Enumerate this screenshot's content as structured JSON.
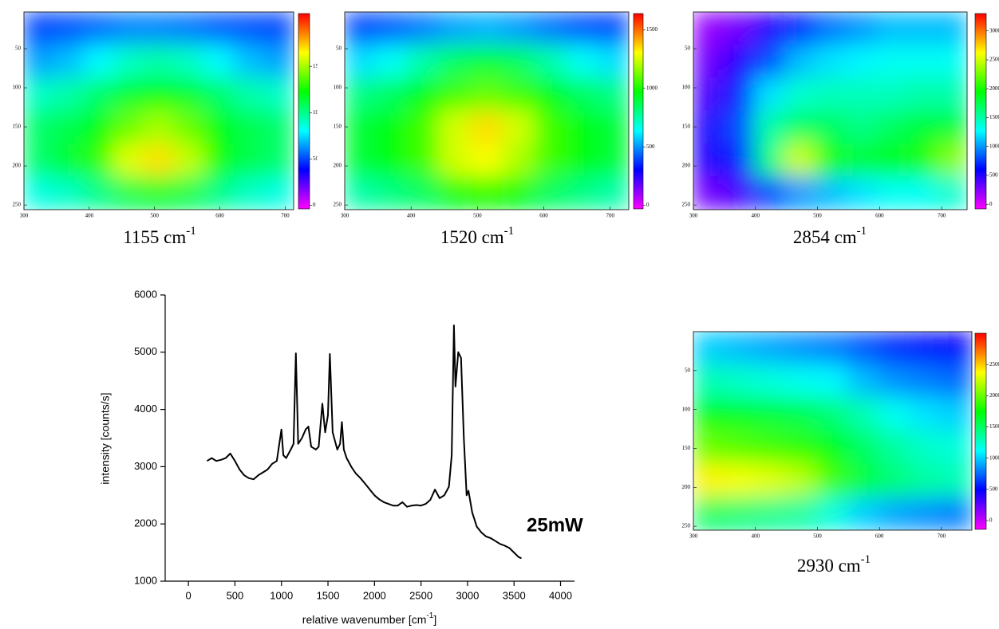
{
  "chart_data": [
    {
      "type": "heatmap",
      "title": [
        "1155 cm",
        "-1"
      ],
      "xlim": [
        300,
        713
      ],
      "ylim": [
        256,
        3
      ],
      "xticks": [
        300,
        400,
        500,
        600,
        700
      ],
      "yticks": [
        50,
        100,
        150,
        200,
        250
      ],
      "clim": [
        -40,
        2070
      ],
      "cticks": [
        0,
        500,
        1000,
        1500
      ],
      "colors": [
        "#ff00ff",
        "#0000ff",
        "#00ffff",
        "#00ff00",
        "#ffff00",
        "#ff0000"
      ],
      "z": [
        [
          500,
          520,
          560,
          600,
          600,
          580,
          540,
          520,
          500
        ],
        [
          650,
          700,
          800,
          900,
          950,
          900,
          800,
          700,
          650
        ],
        [
          900,
          950,
          1050,
          1150,
          1200,
          1150,
          1050,
          950,
          900
        ],
        [
          1050,
          1100,
          1200,
          1400,
          1500,
          1400,
          1200,
          1100,
          1050
        ],
        [
          1050,
          1150,
          1300,
          1600,
          1700,
          1550,
          1250,
          1100,
          1050
        ],
        [
          850,
          900,
          1000,
          1100,
          1150,
          1100,
          1000,
          900,
          850
        ]
      ]
    },
    {
      "type": "heatmap",
      "title": [
        "1520 cm",
        "-1"
      ],
      "xlim": [
        300,
        728
      ],
      "ylim": [
        256,
        3
      ],
      "xticks": [
        300,
        400,
        500,
        600,
        700
      ],
      "yticks": [
        50,
        100,
        150,
        200,
        250
      ],
      "clim": [
        -30,
        1640
      ],
      "cticks": [
        0,
        500,
        1000,
        1500
      ],
      "colors": [
        "#ff00ff",
        "#0000ff",
        "#00ffff",
        "#00ff00",
        "#ffff00",
        "#ff0000"
      ],
      "z": [
        [
          400,
          430,
          470,
          520,
          540,
          510,
          460,
          420,
          400
        ],
        [
          600,
          650,
          750,
          850,
          900,
          850,
          750,
          650,
          600
        ],
        [
          800,
          850,
          950,
          1050,
          1100,
          1050,
          950,
          850,
          800
        ],
        [
          900,
          950,
          1050,
          1250,
          1350,
          1250,
          1050,
          950,
          900
        ],
        [
          900,
          950,
          1050,
          1250,
          1300,
          1200,
          1050,
          950,
          900
        ],
        [
          750,
          800,
          850,
          950,
          1000,
          950,
          850,
          800,
          750
        ]
      ]
    },
    {
      "type": "heatmap",
      "title": [
        "2854 cm",
        "-1"
      ],
      "xlim": [
        300,
        741
      ],
      "ylim": [
        256,
        3
      ],
      "xticks": [
        300,
        400,
        500,
        600,
        700
      ],
      "yticks": [
        50,
        100,
        150,
        200,
        250
      ],
      "clim": [
        -80,
        3300
      ],
      "cticks": [
        0,
        500,
        1000,
        1500,
        2000,
        2500,
        3000
      ],
      "colors": [
        "#ff00ff",
        "#0000ff",
        "#00ffff",
        "#00ff00",
        "#ffff00",
        "#ff0000"
      ],
      "z": [
        [
          200,
          300,
          500,
          700,
          900,
          1000,
          1100,
          1100,
          1100
        ],
        [
          300,
          500,
          800,
          1100,
          1200,
          1250,
          1300,
          1300,
          1300
        ],
        [
          400,
          700,
          1200,
          1400,
          1450,
          1450,
          1450,
          1500,
          1500
        ],
        [
          500,
          800,
          1500,
          1700,
          1700,
          1600,
          1700,
          1800,
          1800
        ],
        [
          500,
          700,
          1600,
          2500,
          2000,
          1800,
          1900,
          2000,
          2300
        ],
        [
          300,
          400,
          800,
          1000,
          1100,
          1200,
          1300,
          1300,
          1400
        ]
      ]
    },
    {
      "type": "line",
      "xlabel": [
        "relative wavenumber [cm",
        "-1",
        "]"
      ],
      "ylabel": "intensity [counts/s]",
      "annotation": "25mW",
      "xlim": [
        -250,
        4150
      ],
      "ylim": [
        1000,
        6000
      ],
      "xticks": [
        0,
        500,
        1000,
        1500,
        2000,
        2500,
        3000,
        3500,
        4000
      ],
      "yticks": [
        1000,
        2000,
        3000,
        4000,
        5000,
        6000
      ],
      "color": "#000000",
      "x": [
        200,
        250,
        300,
        350,
        400,
        450,
        500,
        550,
        600,
        650,
        700,
        750,
        800,
        850,
        900,
        950,
        1000,
        1020,
        1050,
        1100,
        1130,
        1155,
        1180,
        1220,
        1260,
        1290,
        1320,
        1370,
        1400,
        1440,
        1470,
        1500,
        1520,
        1550,
        1600,
        1630,
        1650,
        1670,
        1700,
        1750,
        1800,
        1850,
        1900,
        1950,
        2000,
        2050,
        2100,
        2150,
        2200,
        2250,
        2300,
        2350,
        2400,
        2450,
        2500,
        2550,
        2600,
        2650,
        2700,
        2750,
        2800,
        2830,
        2854,
        2870,
        2900,
        2930,
        2960,
        2990,
        3010,
        3050,
        3100,
        3150,
        3200,
        3250,
        3300,
        3350,
        3400,
        3450,
        3500,
        3550,
        3580
      ],
      "values": [
        3100,
        3150,
        3100,
        3120,
        3150,
        3230,
        3100,
        2950,
        2850,
        2800,
        2780,
        2850,
        2900,
        2950,
        3050,
        3100,
        3650,
        3200,
        3150,
        3300,
        3400,
        4980,
        3400,
        3500,
        3650,
        3700,
        3350,
        3300,
        3350,
        4100,
        3600,
        3900,
        4970,
        3600,
        3300,
        3400,
        3780,
        3300,
        3150,
        3000,
        2880,
        2800,
        2700,
        2600,
        2500,
        2430,
        2380,
        2350,
        2320,
        2320,
        2380,
        2300,
        2320,
        2330,
        2320,
        2350,
        2420,
        2600,
        2450,
        2500,
        2650,
        3200,
        5470,
        4400,
        5000,
        4900,
        3500,
        2500,
        2580,
        2200,
        1950,
        1850,
        1780,
        1750,
        1700,
        1650,
        1620,
        1580,
        1500,
        1420,
        1400
      ]
    },
    {
      "type": "heatmap",
      "title": [
        "2930 cm",
        "-1"
      ],
      "xlim": [
        300,
        749
      ],
      "ylim": [
        255,
        0
      ],
      "xticks": [
        300,
        400,
        500,
        600,
        700
      ],
      "yticks": [
        50,
        100,
        150,
        200,
        250
      ],
      "clim": [
        -140,
        3000
      ],
      "cticks": [
        0,
        500,
        1000,
        1500,
        2000,
        2500
      ],
      "colors": [
        "#ff00ff",
        "#0000ff",
        "#00ffff",
        "#00ff00",
        "#ffff00",
        "#ff0000"
      ],
      "z": [
        [
          1000,
          950,
          900,
          850,
          800,
          700,
          600,
          550,
          500
        ],
        [
          1300,
          1250,
          1200,
          1150,
          1100,
          950,
          850,
          800,
          750
        ],
        [
          1700,
          1650,
          1600,
          1550,
          1450,
          1300,
          1150,
          1050,
          1000
        ],
        [
          2000,
          1950,
          1900,
          1850,
          1700,
          1500,
          1350,
          1250,
          1200
        ],
        [
          2400,
          2350,
          2300,
          2200,
          1900,
          1600,
          1450,
          1350,
          1300
        ],
        [
          1500,
          1450,
          1400,
          1350,
          1200,
          1000,
          900,
          850,
          800
        ]
      ]
    }
  ]
}
